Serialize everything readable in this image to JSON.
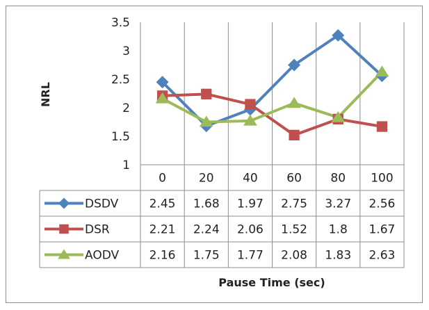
{
  "chart_data": {
    "type": "line",
    "x": [
      "0",
      "20",
      "40",
      "60",
      "80",
      "100"
    ],
    "xlabel": "Pause Time (sec)",
    "ylabel": "NRL",
    "ylim": [
      1,
      3.5
    ],
    "yticks": [
      "1",
      "1.5",
      "2",
      "2.5",
      "3",
      "3.5"
    ],
    "grid": "vertical",
    "legend": "data-table-below",
    "series": [
      {
        "name": "DSDV",
        "values": [
          2.45,
          1.68,
          1.97,
          2.75,
          3.27,
          2.56
        ],
        "labels": [
          "2.45",
          "1.68",
          "1.97",
          "2.75",
          "3.27",
          "2.56"
        ],
        "color": "#4f81bd",
        "marker": "diamond"
      },
      {
        "name": "DSR",
        "values": [
          2.21,
          2.24,
          2.06,
          1.52,
          1.8,
          1.67
        ],
        "labels": [
          "2.21",
          "2.24",
          "2.06",
          "1.52",
          "1.8",
          "1.67"
        ],
        "color": "#c0504d",
        "marker": "square"
      },
      {
        "name": "AODV",
        "values": [
          2.16,
          1.75,
          1.77,
          2.08,
          1.83,
          2.63
        ],
        "labels": [
          "2.16",
          "1.75",
          "1.77",
          "2.08",
          "1.83",
          "2.63"
        ],
        "color": "#9bbb59",
        "marker": "triangle"
      }
    ]
  }
}
